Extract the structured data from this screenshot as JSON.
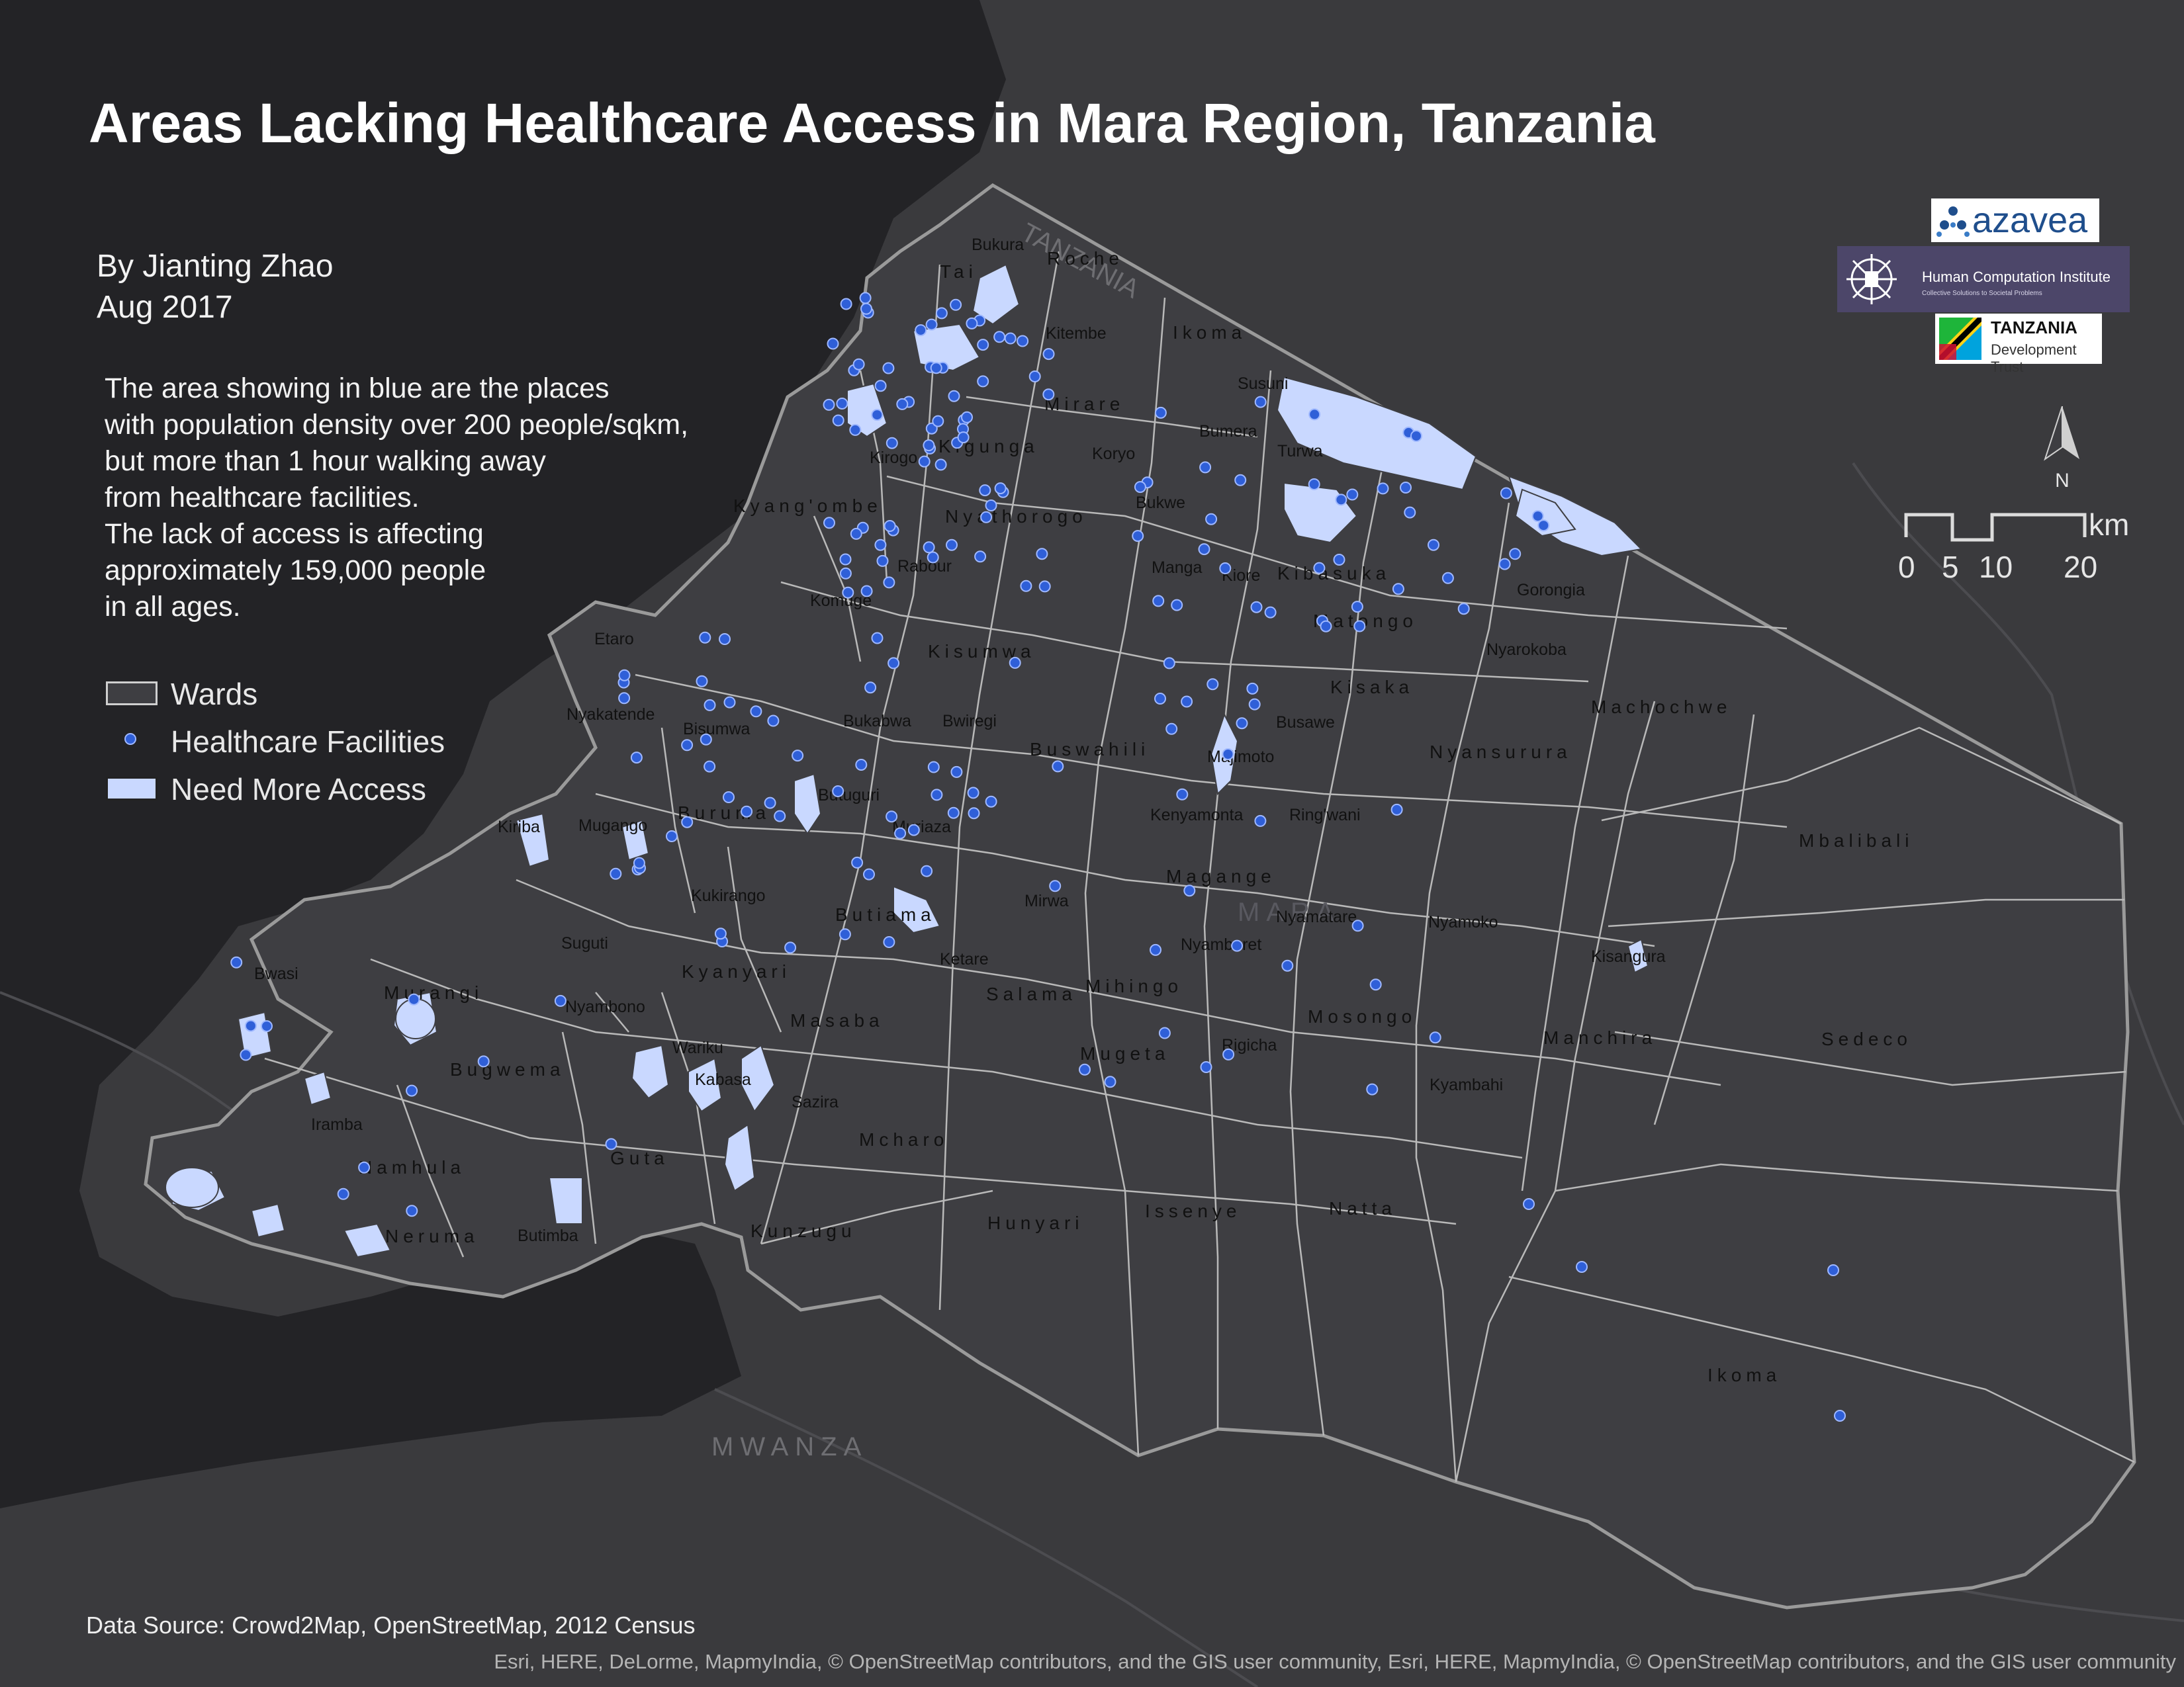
{
  "title": "Areas Lacking Healthcare Access in Mara Region, Tanzania",
  "byline": {
    "author": "By Jianting Zhao",
    "date": "Aug 2017"
  },
  "description": [
    "The area showing in blue are the places",
    "with population density over 200 people/sqkm,",
    "but more than 1 hour walking away",
    "from healthcare facilities.",
    "The lack of access is affecting",
    "approximately 159,000 people",
    "in all ages."
  ],
  "legend": [
    {
      "label": "Wards",
      "symbol": "ward-outline"
    },
    {
      "label": "Healthcare Facilities",
      "symbol": "facility-dot"
    },
    {
      "label": "Need More Access",
      "symbol": "need-access-fill"
    }
  ],
  "logos": {
    "azavea": "azavea",
    "hci_name": "Human Computation Institute",
    "hci_tagline": "Collective Solutions to Societal Problems",
    "tdt_name": "TANZANIA",
    "tdt_sub": "Development Trust"
  },
  "north_label": "N",
  "scalebar": {
    "unit": "km",
    "labels": [
      "0",
      "5",
      "10",
      "20"
    ]
  },
  "basemap_labels": {
    "country": "TANZANIA",
    "region_west": "MWANZA",
    "region_center": "MARA"
  },
  "wards": [
    "Bukura",
    "Tai",
    "Roche",
    "Kitembe",
    "Ikoma",
    "Susuni",
    "Mirare",
    "Kigunga",
    "Kirogo",
    "Koryo",
    "Bumera",
    "Turwa",
    "Kyang'ombe",
    "Nyathorogo",
    "Bukwe",
    "Rabour",
    "Manga",
    "Kiore",
    "Kibasuka",
    "Gorongia",
    "Komuge",
    "Matongo",
    "Etaro",
    "Kisumwa",
    "Nyarokoba",
    "Kisaka",
    "Machochwe",
    "Nyakatende",
    "Bisumwa",
    "Bukabwa",
    "Bwiregi",
    "Buswahili",
    "Busawe",
    "Majimoto",
    "Nyansurura",
    "Butuguri",
    "Kiriba",
    "Mugango",
    "Buruma",
    "Muriaza",
    "Kenyamonta",
    "Ring'wani",
    "Mbalibali",
    "Magange",
    "Kukirango",
    "Butiama",
    "Mirwa",
    "Nyamatare",
    "Nyamoko",
    "Suguti",
    "Ketare",
    "Nyamburet",
    "Kisangura",
    "Bwasi",
    "Murangi",
    "Kyanyari",
    "Salama",
    "Mihingo",
    "Nyambono",
    "Mosongo",
    "Masaba",
    "Manchira",
    "Sedeco",
    "Wariku",
    "Rigicha",
    "Bugwema",
    "Kabasa",
    "Mugeta",
    "Kyambahi",
    "Iramba",
    "Sazira",
    "Namhula",
    "Guta",
    "Mcharo",
    "Neruma",
    "Butimba",
    "Kunzugu",
    "Hunyari",
    "Issenye",
    "Natta",
    "Ikoma"
  ],
  "facility_count": 196,
  "data_source": "Data Source: Crowd2Map, OpenStreetMap, 2012 Census",
  "credits": "Esri, HERE, DeLorme, MapmyIndia, © OpenStreetMap contributors, and the GIS user community, Esri, HERE, MapmyIndia, © OpenStreetMap contributors, and the GIS user community",
  "colors": {
    "water": "#232326",
    "land": "#3a3a3d",
    "region_fill": "#3e3e42",
    "ward_line": "#b9b9b9",
    "region_border": "#9a9a9a",
    "need_access": "#c9d8ff",
    "facility": "#2f5fd8",
    "label": "#111111"
  }
}
